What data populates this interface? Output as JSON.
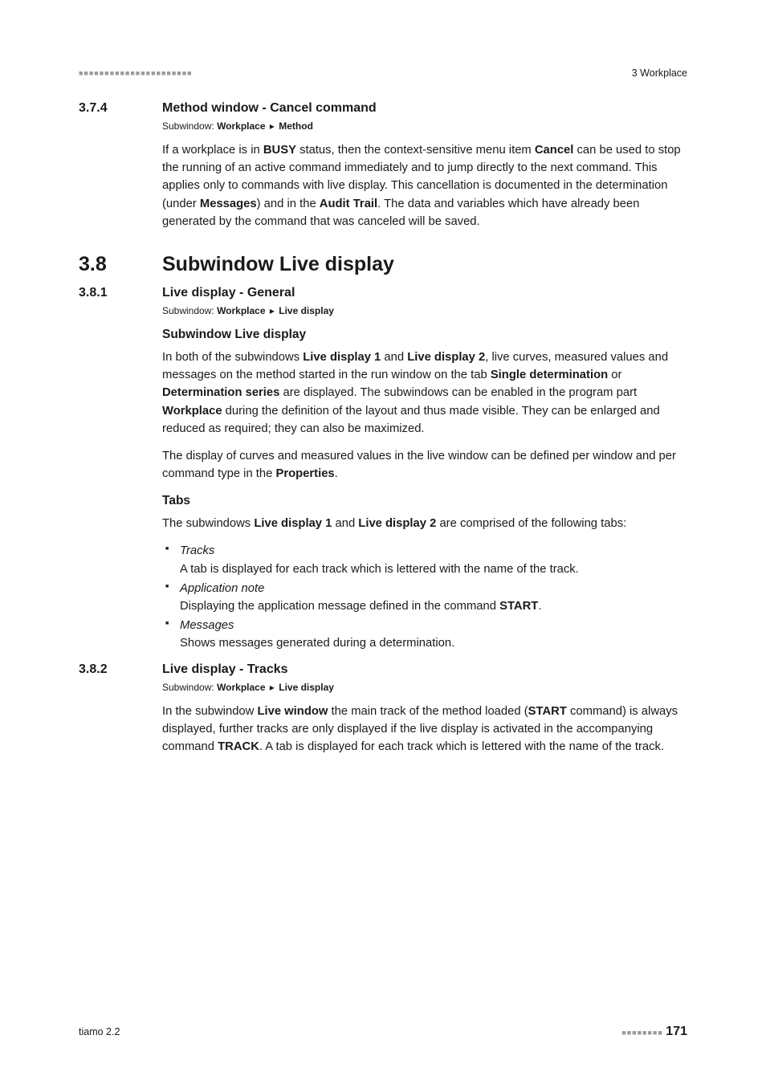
{
  "header": {
    "chapter": "3 Workplace"
  },
  "sections": [
    {
      "number": "3.7.4",
      "title": "Method window - Cancel command",
      "subwindow": {
        "label": "Subwindow:",
        "path1": "Workplace",
        "path2": "Method"
      },
      "paragraphs": [
        {
          "parts": [
            {
              "t": "If a workplace is in "
            },
            {
              "t": "BUSY",
              "b": true
            },
            {
              "t": " status, then the context-sensitive menu item "
            },
            {
              "t": "Cancel",
              "b": true
            },
            {
              "t": " can be used to stop the running of an active command immediately and to jump directly to the next command. This applies only to commands with live display. This cancellation is documented in the determination (under "
            },
            {
              "t": "Messages",
              "b": true
            },
            {
              "t": ") and in the "
            },
            {
              "t": "Audit Trail",
              "b": true
            },
            {
              "t": ". The data and variables which have already been generated by the command that was canceled will be saved."
            }
          ]
        }
      ]
    }
  ],
  "bigSection": {
    "number": "3.8",
    "title": "Subwindow Live display"
  },
  "subsections": [
    {
      "number": "3.8.1",
      "title": "Live display - General",
      "subwindow": {
        "label": "Subwindow:",
        "path1": "Workplace",
        "path2": "Live display"
      },
      "blocks": [
        {
          "heading": "Subwindow Live display"
        },
        {
          "paragraph": {
            "parts": [
              {
                "t": "In both of the subwindows "
              },
              {
                "t": "Live display 1",
                "b": true
              },
              {
                "t": " and "
              },
              {
                "t": "Live display 2",
                "b": true
              },
              {
                "t": ", live curves, measured values and messages on the method started in the run window on the tab "
              },
              {
                "t": "Single determination",
                "b": true
              },
              {
                "t": " or "
              },
              {
                "t": "Determination series",
                "b": true
              },
              {
                "t": " are displayed. The subwindows can be enabled in the program part "
              },
              {
                "t": "Workplace",
                "b": true
              },
              {
                "t": " during the definition of the layout and thus made visible. They can be enlarged and reduced as required; they can also be maximized."
              }
            ]
          }
        },
        {
          "paragraph": {
            "parts": [
              {
                "t": "The display of curves and measured values in the live window can be defined per window and per command type in the "
              },
              {
                "t": "Properties",
                "b": true
              },
              {
                "t": "."
              }
            ]
          }
        },
        {
          "heading": "Tabs"
        },
        {
          "paragraph": {
            "parts": [
              {
                "t": "The subwindows "
              },
              {
                "t": "Live display 1",
                "b": true
              },
              {
                "t": " and "
              },
              {
                "t": "Live display 2",
                "b": true
              },
              {
                "t": " are comprised of the following tabs:"
              }
            ]
          }
        },
        {
          "list": [
            {
              "term": "Tracks",
              "desc": {
                "parts": [
                  {
                    "t": "A tab is displayed for each track which is lettered with the name of the track."
                  }
                ]
              }
            },
            {
              "term": "Application note",
              "desc": {
                "parts": [
                  {
                    "t": "Displaying the application message defined in the command "
                  },
                  {
                    "t": "START",
                    "b": true
                  },
                  {
                    "t": "."
                  }
                ]
              }
            },
            {
              "term": "Messages",
              "desc": {
                "parts": [
                  {
                    "t": "Shows messages generated during a determination."
                  }
                ]
              }
            }
          ]
        }
      ]
    },
    {
      "number": "3.8.2",
      "title": "Live display - Tracks",
      "subwindow": {
        "label": "Subwindow:",
        "path1": "Workplace",
        "path2": "Live display"
      },
      "blocks": [
        {
          "paragraph": {
            "parts": [
              {
                "t": "In the subwindow "
              },
              {
                "t": "Live window",
                "b": true
              },
              {
                "t": " the main track of the method loaded ("
              },
              {
                "t": "START",
                "b": true
              },
              {
                "t": " command) is always displayed, further tracks are only displayed if the live display is activated in the accompanying command "
              },
              {
                "t": "TRACK",
                "b": true
              },
              {
                "t": ". A tab is displayed for each track which is lettered with the name of the track."
              }
            ]
          }
        }
      ]
    }
  ],
  "footer": {
    "product": "tiamo 2.2",
    "page": "171"
  }
}
